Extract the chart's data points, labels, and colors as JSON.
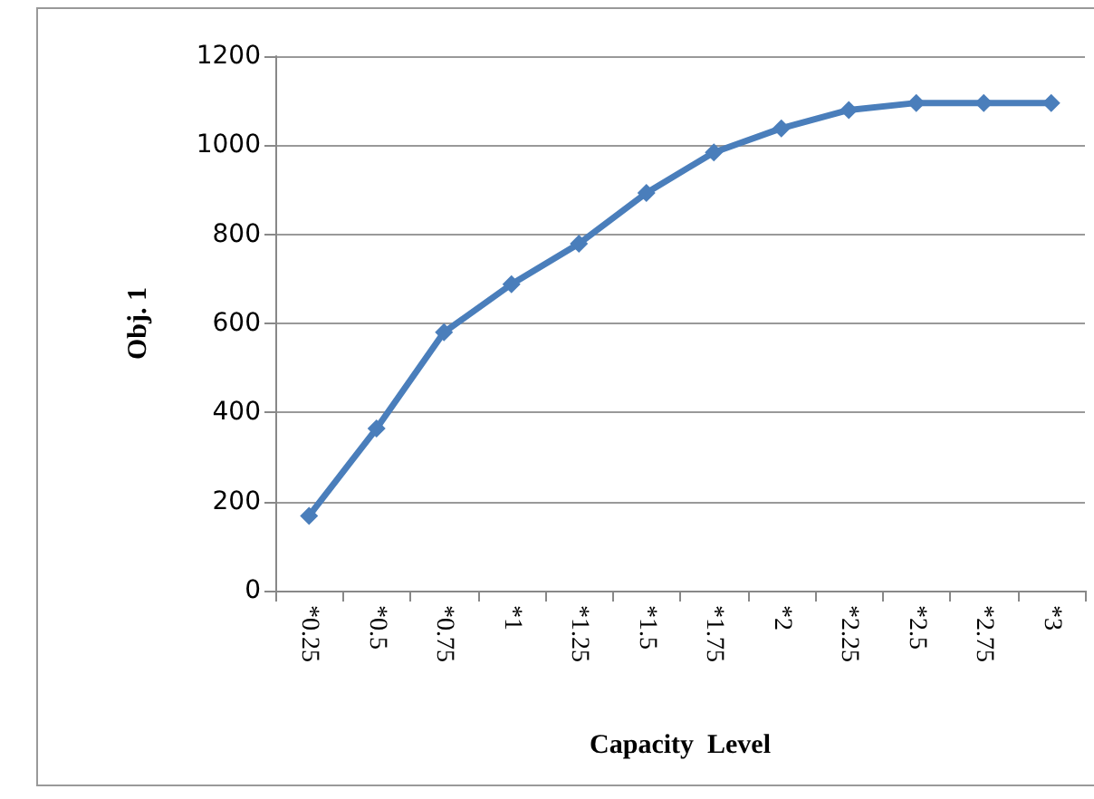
{
  "chart_data": {
    "type": "line",
    "xlabel": "Capacity  Level",
    "ylabel": "Obj. 1",
    "categories": [
      "*0.25",
      "*0.5",
      "*0.75",
      "*1",
      "*1.25",
      "*1.5",
      "*1.75",
      "*2",
      "*2.25",
      "*2.5",
      "*2.75",
      "*3"
    ],
    "series": [
      {
        "color": "#4a7ebb",
        "values": [
          168,
          364,
          580,
          688,
          779,
          893,
          984,
          1038,
          1079,
          1095,
          1095,
          1095
        ]
      }
    ],
    "ylim": [
      0,
      1200
    ],
    "yticks": [
      0,
      200,
      400,
      600,
      800,
      1000,
      1200
    ],
    "grid": "y",
    "marker": "diamond",
    "line_style": "solid"
  }
}
